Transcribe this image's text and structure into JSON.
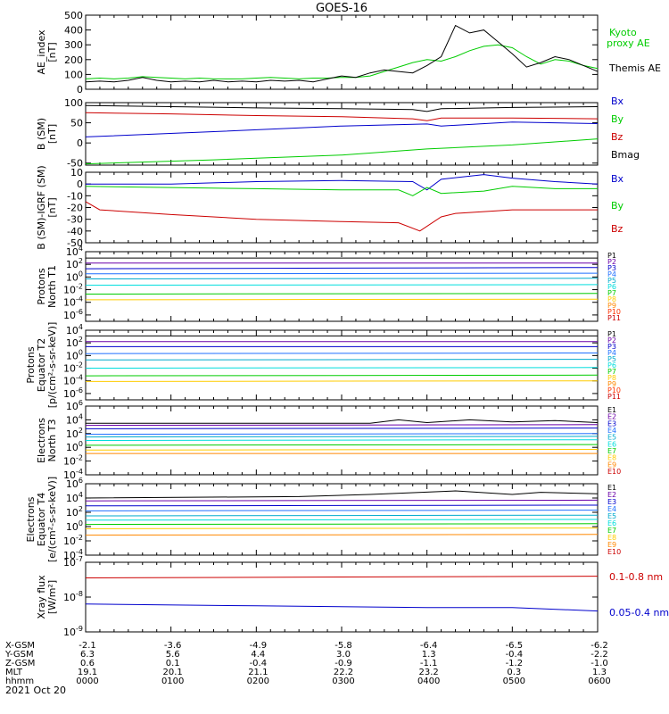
{
  "title": "GOES-16",
  "date_label": "2021 Oct 20",
  "chart_data": [
    {
      "type": "line",
      "ylabel": [
        "AE_index",
        "[nT]"
      ],
      "ylim": [
        0,
        500
      ],
      "log": false,
      "ticks": [
        {
          "v": 0,
          "t": "0"
        },
        {
          "v": 100,
          "t": "100"
        },
        {
          "v": 200,
          "t": "200"
        },
        {
          "v": 300,
          "t": "300"
        },
        {
          "v": 400,
          "t": "400"
        },
        {
          "v": 500,
          "t": "500"
        }
      ],
      "series": [
        {
          "name": "Kyoto proxy AE",
          "color": "#00cc00",
          "x": [
            0,
            10,
            20,
            30,
            40,
            50,
            60,
            70,
            80,
            90,
            100,
            110,
            120,
            130,
            140,
            150,
            160,
            170,
            180,
            190,
            200,
            210,
            220,
            230,
            240,
            250,
            260,
            270,
            280,
            290,
            300,
            310,
            320,
            330,
            340,
            350,
            360
          ],
          "y": [
            70,
            75,
            70,
            75,
            85,
            80,
            75,
            70,
            75,
            70,
            70,
            70,
            75,
            80,
            75,
            70,
            75,
            75,
            80,
            80,
            90,
            120,
            150,
            180,
            200,
            190,
            220,
            260,
            290,
            300,
            280,
            220,
            170,
            200,
            190,
            160,
            140
          ]
        },
        {
          "name": "Themis AE",
          "color": "#000000",
          "x": [
            0,
            10,
            20,
            30,
            40,
            50,
            60,
            70,
            80,
            90,
            100,
            110,
            120,
            130,
            140,
            150,
            160,
            170,
            180,
            190,
            200,
            210,
            220,
            230,
            240,
            250,
            260,
            270,
            280,
            290,
            300,
            310,
            320,
            330,
            340,
            350,
            360
          ],
          "y": [
            50,
            55,
            50,
            60,
            80,
            60,
            50,
            55,
            50,
            60,
            50,
            55,
            50,
            60,
            55,
            60,
            50,
            70,
            90,
            80,
            110,
            130,
            120,
            110,
            160,
            220,
            430,
            380,
            400,
            320,
            240,
            150,
            180,
            220,
            200,
            160,
            120
          ]
        }
      ]
    },
    {
      "type": "line",
      "ylabel": [
        "B (SM)",
        "[nT]"
      ],
      "ylim": [
        -55,
        100
      ],
      "log": false,
      "ticks": [
        {
          "v": -50,
          "t": "-50"
        },
        {
          "v": 0,
          "t": "0"
        },
        {
          "v": 50,
          "t": "50"
        },
        {
          "v": 100,
          "t": "100"
        }
      ],
      "series": [
        {
          "name": "Bx",
          "color": "#0000cc",
          "x": [
            0,
            90,
            180,
            240,
            250,
            300,
            360
          ],
          "y": [
            15,
            28,
            42,
            47,
            42,
            52,
            48
          ]
        },
        {
          "name": "By",
          "color": "#00cc00",
          "x": [
            0,
            90,
            180,
            240,
            300,
            360
          ],
          "y": [
            -52,
            -42,
            -30,
            -15,
            -5,
            10
          ]
        },
        {
          "name": "Bz",
          "color": "#cc0000",
          "x": [
            0,
            60,
            120,
            180,
            230,
            240,
            250,
            300,
            360
          ],
          "y": [
            75,
            72,
            68,
            65,
            60,
            55,
            62,
            62,
            60
          ]
        },
        {
          "name": "Bmag",
          "color": "#000000",
          "x": [
            0,
            60,
            120,
            180,
            230,
            240,
            250,
            300,
            360
          ],
          "y": [
            93,
            90,
            87,
            85,
            83,
            78,
            85,
            88,
            90
          ]
        }
      ]
    },
    {
      "type": "line",
      "ylabel": [
        "B (SM)-IGRF (SM)",
        "[nT]"
      ],
      "ylim": [
        -50,
        10
      ],
      "log": false,
      "ticks": [
        {
          "v": -50,
          "t": "-50"
        },
        {
          "v": -40,
          "t": "-40"
        },
        {
          "v": -30,
          "t": "-30"
        },
        {
          "v": -20,
          "t": "-20"
        },
        {
          "v": -10,
          "t": "-10"
        },
        {
          "v": 0,
          "t": "0"
        },
        {
          "v": 10,
          "t": "10"
        }
      ],
      "series": [
        {
          "name": "Bx",
          "color": "#0000cc",
          "x": [
            0,
            60,
            120,
            180,
            230,
            240,
            250,
            280,
            300,
            330,
            360
          ],
          "y": [
            0,
            0,
            2,
            3,
            2,
            -5,
            4,
            8,
            5,
            2,
            0
          ]
        },
        {
          "name": "By",
          "color": "#00cc00",
          "x": [
            0,
            60,
            120,
            180,
            220,
            230,
            240,
            250,
            280,
            300,
            330,
            360
          ],
          "y": [
            -2,
            -3,
            -4,
            -5,
            -5,
            -10,
            -3,
            -8,
            -6,
            -2,
            -4,
            -4
          ]
        },
        {
          "name": "Bz",
          "color": "#cc0000",
          "x": [
            0,
            10,
            60,
            120,
            180,
            220,
            235,
            250,
            260,
            300,
            360
          ],
          "y": [
            -15,
            -22,
            -26,
            -30,
            -32,
            -33,
            -40,
            -28,
            -25,
            -22,
            -22
          ]
        }
      ]
    },
    {
      "type": "line",
      "ylabel": [
        "Protons",
        "North T1"
      ],
      "ylim": [
        -7,
        4
      ],
      "log": true,
      "ticks": [
        {
          "v": -6,
          "t": "10^-6"
        },
        {
          "v": -4,
          "t": "10^-4"
        },
        {
          "v": -2,
          "t": "10^-2"
        },
        {
          "v": 0,
          "t": "10^0"
        },
        {
          "v": 2,
          "t": "10^2"
        },
        {
          "v": 4,
          "t": "10^4"
        }
      ],
      "series": [
        {
          "name": "P1",
          "color": "#000000",
          "x": [
            0,
            360
          ],
          "y": [
            3.0,
            3.0
          ]
        },
        {
          "name": "P2",
          "color": "#6a00a8",
          "x": [
            0,
            360
          ],
          "y": [
            2.2,
            2.2
          ]
        },
        {
          "name": "P3",
          "color": "#0000cc",
          "x": [
            0,
            360
          ],
          "y": [
            1.3,
            1.5
          ]
        },
        {
          "name": "P4",
          "color": "#1f6fff",
          "x": [
            0,
            360
          ],
          "y": [
            0.5,
            0.6
          ]
        },
        {
          "name": "P5",
          "color": "#00aacc",
          "x": [
            0,
            360
          ],
          "y": [
            -0.3,
            -0.2
          ]
        },
        {
          "name": "P6",
          "color": "#00dddd",
          "x": [
            0,
            360
          ],
          "y": [
            -1.3,
            -1.2
          ]
        },
        {
          "name": "P7",
          "color": "#00cc00",
          "x": [
            0,
            360
          ],
          "y": [
            -2.7,
            -2.6
          ]
        },
        {
          "name": "P8",
          "color": "#ffcc00",
          "x": [
            0,
            360
          ],
          "y": [
            -3.6,
            -3.5
          ]
        },
        {
          "name": "P9",
          "color": "#ff8800"
        },
        {
          "name": "P10",
          "color": "#ff3300"
        },
        {
          "name": "P11",
          "color": "#cc0000"
        }
      ]
    },
    {
      "type": "line",
      "ylabel": [
        "Protons",
        "Equator T2",
        "[p/(cm²-s-sr-keV)]"
      ],
      "ylim": [
        -7,
        4
      ],
      "log": true,
      "ticks": [
        {
          "v": -6,
          "t": "10^-6"
        },
        {
          "v": -4,
          "t": "10^-4"
        },
        {
          "v": -2,
          "t": "10^-2"
        },
        {
          "v": 0,
          "t": "10^0"
        },
        {
          "v": 2,
          "t": "10^2"
        },
        {
          "v": 4,
          "t": "10^4"
        }
      ],
      "series": [
        {
          "name": "P1",
          "color": "#000000",
          "x": [
            0,
            360
          ],
          "y": [
            3.1,
            3.1
          ]
        },
        {
          "name": "P2",
          "color": "#6a00a8",
          "x": [
            0,
            360
          ],
          "y": [
            2.2,
            2.2
          ]
        },
        {
          "name": "P3",
          "color": "#0000cc",
          "x": [
            0,
            360
          ],
          "y": [
            1.4,
            1.4
          ]
        },
        {
          "name": "P4",
          "color": "#1f6fff",
          "x": [
            0,
            360
          ],
          "y": [
            0.3,
            0.4
          ]
        },
        {
          "name": "P5",
          "color": "#00aacc",
          "x": [
            0,
            360
          ],
          "y": [
            -0.7,
            -0.6
          ]
        },
        {
          "name": "P6",
          "color": "#00dddd",
          "x": [
            0,
            360
          ],
          "y": [
            -2.0,
            -1.9
          ]
        },
        {
          "name": "P7",
          "color": "#00cc00",
          "x": [
            0,
            360
          ],
          "y": [
            -3.2,
            -3.1
          ]
        },
        {
          "name": "P8",
          "color": "#ffcc00",
          "x": [
            0,
            360
          ],
          "y": [
            -4.1,
            -4.0
          ]
        },
        {
          "name": "P9",
          "color": "#ff8800"
        },
        {
          "name": "P10",
          "color": "#ff3300"
        },
        {
          "name": "P11",
          "color": "#cc0000"
        }
      ]
    },
    {
      "type": "line",
      "ylabel": [
        "Electrons",
        "North T3"
      ],
      "ylim": [
        -4,
        6
      ],
      "log": true,
      "ticks": [
        {
          "v": -4,
          "t": "10^-4"
        },
        {
          "v": -2,
          "t": "10^-2"
        },
        {
          "v": 0,
          "t": "10^0"
        },
        {
          "v": 2,
          "t": "10^2"
        },
        {
          "v": 4,
          "t": "10^4"
        },
        {
          "v": 6,
          "t": "10^6"
        }
      ],
      "series": [
        {
          "name": "E1",
          "color": "#000000",
          "x": [
            0,
            200,
            220,
            240,
            270,
            300,
            330,
            360
          ],
          "y": [
            3.5,
            3.5,
            4.0,
            3.6,
            4.0,
            3.7,
            3.9,
            3.6
          ]
        },
        {
          "name": "E2",
          "color": "#6a00a8",
          "x": [
            0,
            360
          ],
          "y": [
            3.2,
            3.3
          ]
        },
        {
          "name": "E3",
          "color": "#0000cc",
          "x": [
            0,
            360
          ],
          "y": [
            2.7,
            2.8
          ]
        },
        {
          "name": "E4",
          "color": "#1f6fff",
          "x": [
            0,
            360
          ],
          "y": [
            1.9,
            2.0
          ]
        },
        {
          "name": "E5",
          "color": "#00aacc",
          "x": [
            0,
            360
          ],
          "y": [
            1.5,
            1.6
          ]
        },
        {
          "name": "E6",
          "color": "#00dddd",
          "x": [
            0,
            360
          ],
          "y": [
            1.0,
            1.1
          ]
        },
        {
          "name": "E7",
          "color": "#00cc00",
          "x": [
            0,
            360
          ],
          "y": [
            0.3,
            0.4
          ]
        },
        {
          "name": "E8",
          "color": "#ffcc00",
          "x": [
            0,
            360
          ],
          "y": [
            -0.4,
            -0.3
          ]
        },
        {
          "name": "E9",
          "color": "#ff8800",
          "x": [
            0,
            360
          ],
          "y": [
            -0.9,
            -0.9
          ]
        },
        {
          "name": "E10",
          "color": "#cc0000"
        }
      ]
    },
    {
      "type": "line",
      "ylabel": [
        "Electrons",
        "Equator T4",
        "[e/(cm²-s-sr-keV)]"
      ],
      "ylim": [
        -4,
        6
      ],
      "log": true,
      "ticks": [
        {
          "v": -4,
          "t": "10^-4"
        },
        {
          "v": -2,
          "t": "10^-2"
        },
        {
          "v": 0,
          "t": "10^0"
        },
        {
          "v": 2,
          "t": "10^2"
        },
        {
          "v": 4,
          "t": "10^4"
        },
        {
          "v": 6,
          "t": "10^6"
        }
      ],
      "series": [
        {
          "name": "E1",
          "color": "#000000",
          "x": [
            0,
            150,
            200,
            260,
            300,
            320,
            360
          ],
          "y": [
            4.0,
            4.2,
            4.5,
            5.0,
            4.5,
            4.8,
            4.6
          ]
        },
        {
          "name": "E2",
          "color": "#6a00a8",
          "x": [
            0,
            360
          ],
          "y": [
            3.6,
            3.7
          ]
        },
        {
          "name": "E3",
          "color": "#0000cc",
          "x": [
            0,
            360
          ],
          "y": [
            2.9,
            3.0
          ]
        },
        {
          "name": "E4",
          "color": "#1f6fff",
          "x": [
            0,
            360
          ],
          "y": [
            2.2,
            2.3
          ]
        },
        {
          "name": "E5",
          "color": "#00aacc",
          "x": [
            0,
            360
          ],
          "y": [
            1.5,
            1.6
          ]
        },
        {
          "name": "E6",
          "color": "#00dddd",
          "x": [
            0,
            360
          ],
          "y": [
            0.9,
            1.0
          ]
        },
        {
          "name": "E7",
          "color": "#00cc00",
          "x": [
            0,
            360
          ],
          "y": [
            0.3,
            0.4
          ]
        },
        {
          "name": "E8",
          "color": "#ffcc00",
          "x": [
            0,
            360
          ],
          "y": [
            -0.3,
            -0.2
          ]
        },
        {
          "name": "E9",
          "color": "#ff8800",
          "x": [
            0,
            360
          ],
          "y": [
            -1.2,
            -1.1
          ]
        },
        {
          "name": "E10",
          "color": "#cc0000"
        }
      ]
    },
    {
      "type": "line",
      "ylabel": [
        "Xray flux",
        "[W/m²]"
      ],
      "ylim": [
        -9,
        -7
      ],
      "log": true,
      "ticks": [
        {
          "v": -9,
          "t": "10^-9"
        },
        {
          "v": -8,
          "t": "10^-8"
        },
        {
          "v": -7,
          "t": "10^-7"
        }
      ],
      "series": [
        {
          "name": "0.1-0.8 nm",
          "color": "#cc0000",
          "x": [
            0,
            360
          ],
          "y": [
            -7.45,
            -7.4
          ]
        },
        {
          "name": "0.05-0.4 nm",
          "color": "#0000cc",
          "x": [
            0,
            120,
            240,
            300,
            360
          ],
          "y": [
            -8.2,
            -8.25,
            -8.3,
            -8.3,
            -8.4
          ]
        }
      ]
    }
  ],
  "x_axis": {
    "xlim": [
      0,
      360
    ],
    "tick_x": [
      0,
      60,
      120,
      180,
      240,
      300,
      360
    ],
    "rows": [
      {
        "label": "X-GSM",
        "values": [
          "-2.1",
          "-3.6",
          "-4.9",
          "-5.8",
          "-6.4",
          "-6.5",
          "-6.2"
        ]
      },
      {
        "label": "Y-GSM",
        "values": [
          "6.3",
          "5.6",
          "4.4",
          "3.0",
          "1.3",
          "-0.4",
          "-2.2"
        ]
      },
      {
        "label": "Z-GSM",
        "values": [
          "0.6",
          "0.1",
          "-0.4",
          "-0.9",
          "-1.1",
          "-1.2",
          "-1.0"
        ]
      },
      {
        "label": "MLT",
        "values": [
          "19.1",
          "20.1",
          "21.1",
          "22.2",
          "23.2",
          "0.3",
          "1.3"
        ]
      },
      {
        "label": "hhmm",
        "values": [
          "0000",
          "0100",
          "0200",
          "0300",
          "0400",
          "0500",
          "0600"
        ]
      }
    ]
  }
}
